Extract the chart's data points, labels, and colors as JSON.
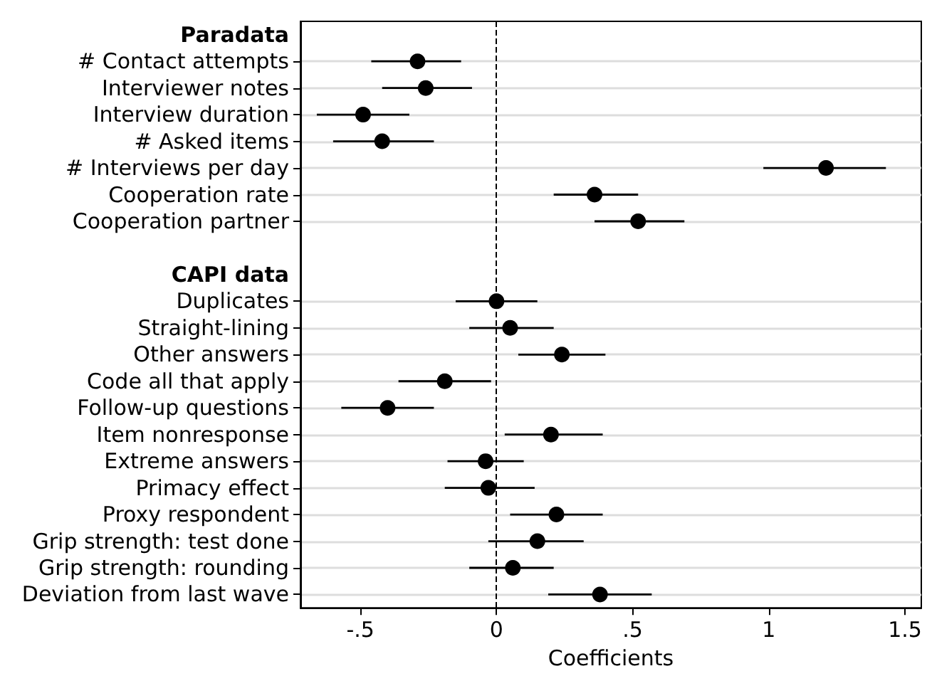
{
  "chart_data": {
    "type": "scatter",
    "orientation": "horizontal",
    "xlabel": "Coefficients",
    "categories": [
      "Paradata",
      "# Contact attempts",
      "Interviewer notes",
      "Interview duration",
      "# Asked items",
      "# Interviews per day",
      "Cooperation rate",
      "Cooperation partner",
      null,
      "CAPI data",
      "Duplicates",
      "Straight-lining",
      "Other answers",
      "Code all that apply",
      "Follow-up questions",
      "Item nonresponse",
      "Extreme answers",
      "Primacy effect",
      "Proxy respondent",
      "Grip strength: test done",
      "Grip strength: rounding",
      "Deviation from last wave"
    ],
    "values": [
      null,
      -0.29,
      -0.26,
      -0.49,
      -0.42,
      1.21,
      0.36,
      0.52,
      null,
      null,
      0,
      0.05,
      0.24,
      -0.19,
      -0.4,
      0.2,
      -0.04,
      -0.03,
      0.22,
      0.15,
      0.06,
      0.38
    ],
    "errors": [
      null,
      [
        -0.46,
        -0.13
      ],
      [
        -0.42,
        -0.09
      ],
      [
        -0.66,
        -0.32
      ],
      [
        -0.6,
        -0.23
      ],
      [
        0.98,
        1.43
      ],
      [
        0.21,
        0.52
      ],
      [
        0.36,
        0.69
      ],
      null,
      null,
      [
        -0.15,
        0.15
      ],
      [
        -0.1,
        0.21
      ],
      [
        0.08,
        0.4
      ],
      [
        -0.36,
        -0.02
      ],
      [
        -0.57,
        -0.23
      ],
      [
        0.03,
        0.39
      ],
      [
        -0.18,
        0.1
      ],
      [
        -0.19,
        0.14
      ],
      [
        0.05,
        0.39
      ],
      [
        -0.03,
        0.32
      ],
      [
        -0.1,
        0.21
      ],
      [
        0.19,
        0.57
      ]
    ],
    "color": "#000000",
    "marker": "circle",
    "grid": "y",
    "xlim": [
      -0.72,
      1.56
    ],
    "xticks": [
      {
        "value": -0.5,
        "label": "-.5"
      },
      0,
      {
        "value": 0.5,
        "label": ".5"
      },
      1,
      1.5
    ],
    "ref_lines": [
      {
        "axis": "x",
        "value": 0,
        "line_style": "dashed",
        "color": "#000000"
      }
    ]
  }
}
